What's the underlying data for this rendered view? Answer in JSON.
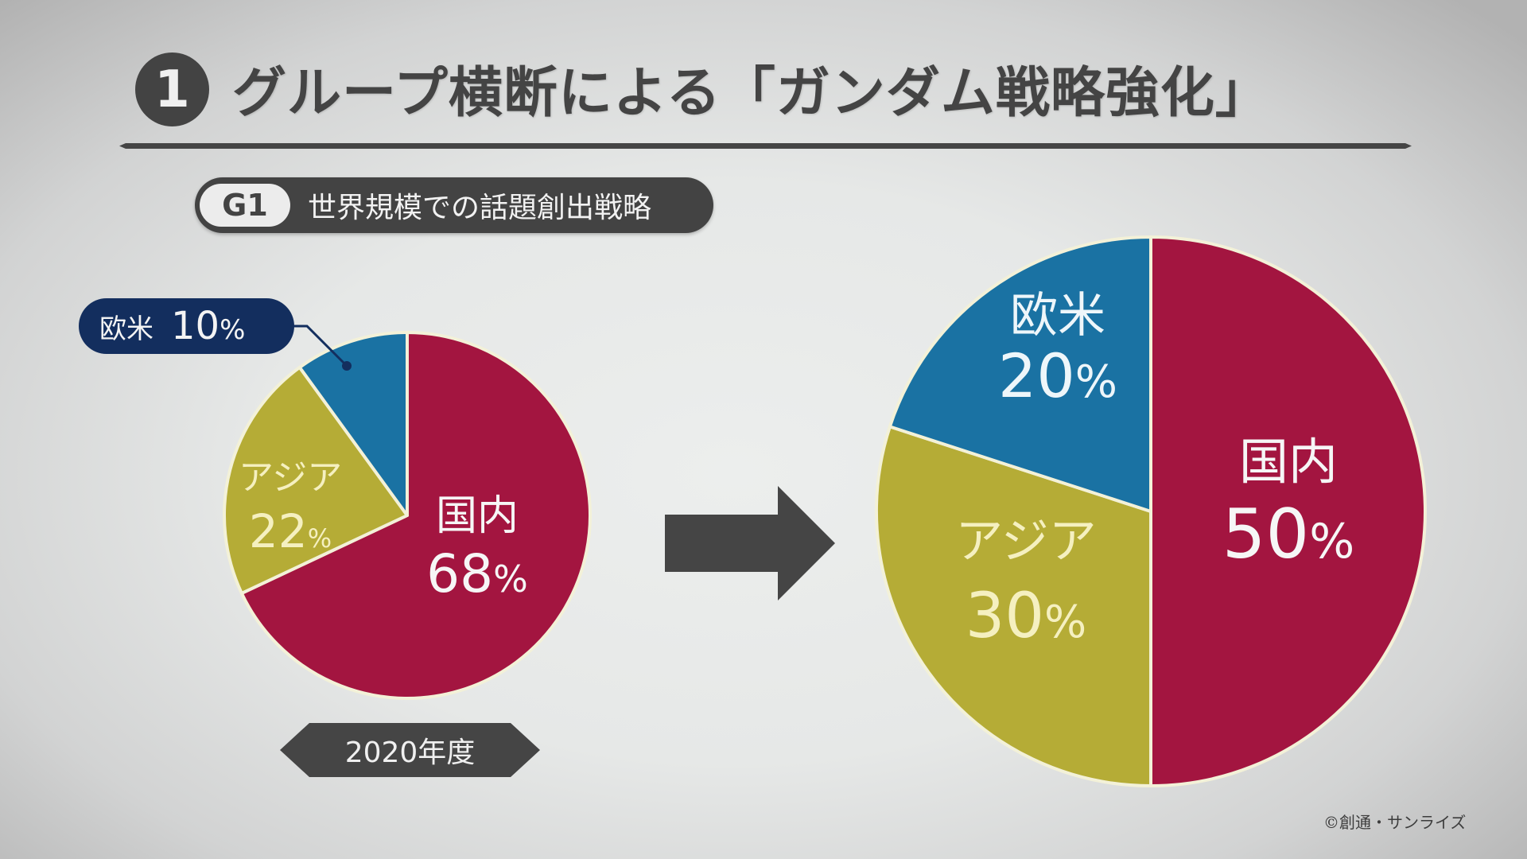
{
  "header": {
    "number": "1",
    "title": "グループ横断による「ガンダム戦略強化」"
  },
  "subtitle": {
    "badge": "G1",
    "text": "世界規模での話題創出戦略"
  },
  "callout": {
    "label": "欧米",
    "value": "10",
    "unit": "%"
  },
  "year_tag": "2020年度",
  "copyright": "©創通・サンライズ",
  "colors": {
    "domestic": "#a31540",
    "asia": "#b5ac36",
    "west": "#1a72a3",
    "callout_bg": "#132e5e",
    "dark": "#444444"
  },
  "pies": {
    "left": {
      "domestic": {
        "label": "国内",
        "value": "68",
        "unit": "%"
      },
      "asia": {
        "label": "アジア",
        "value": "22",
        "unit": "%"
      },
      "west": {
        "label": "欧米",
        "value": "10",
        "unit": "%"
      }
    },
    "right": {
      "domestic": {
        "label": "国内",
        "value": "50",
        "unit": "%"
      },
      "asia": {
        "label": "アジア",
        "value": "30",
        "unit": "%"
      },
      "west": {
        "label": "欧米",
        "value": "20",
        "unit": "%"
      }
    }
  },
  "chart_data": [
    {
      "type": "pie",
      "title": "2020年度",
      "categories": [
        "国内",
        "アジア",
        "欧米"
      ],
      "values": [
        68,
        22,
        10
      ],
      "colors": [
        "#a31540",
        "#b5ac36",
        "#1a72a3"
      ],
      "start_angle": "12 o'clock, clockwise",
      "legend": "inline labels (欧米 via callout)"
    },
    {
      "type": "pie",
      "title": "",
      "categories": [
        "国内",
        "アジア",
        "欧米"
      ],
      "values": [
        50,
        30,
        20
      ],
      "colors": [
        "#a31540",
        "#b5ac36",
        "#1a72a3"
      ],
      "start_angle": "12 o'clock, clockwise",
      "legend": "inline labels"
    }
  ]
}
